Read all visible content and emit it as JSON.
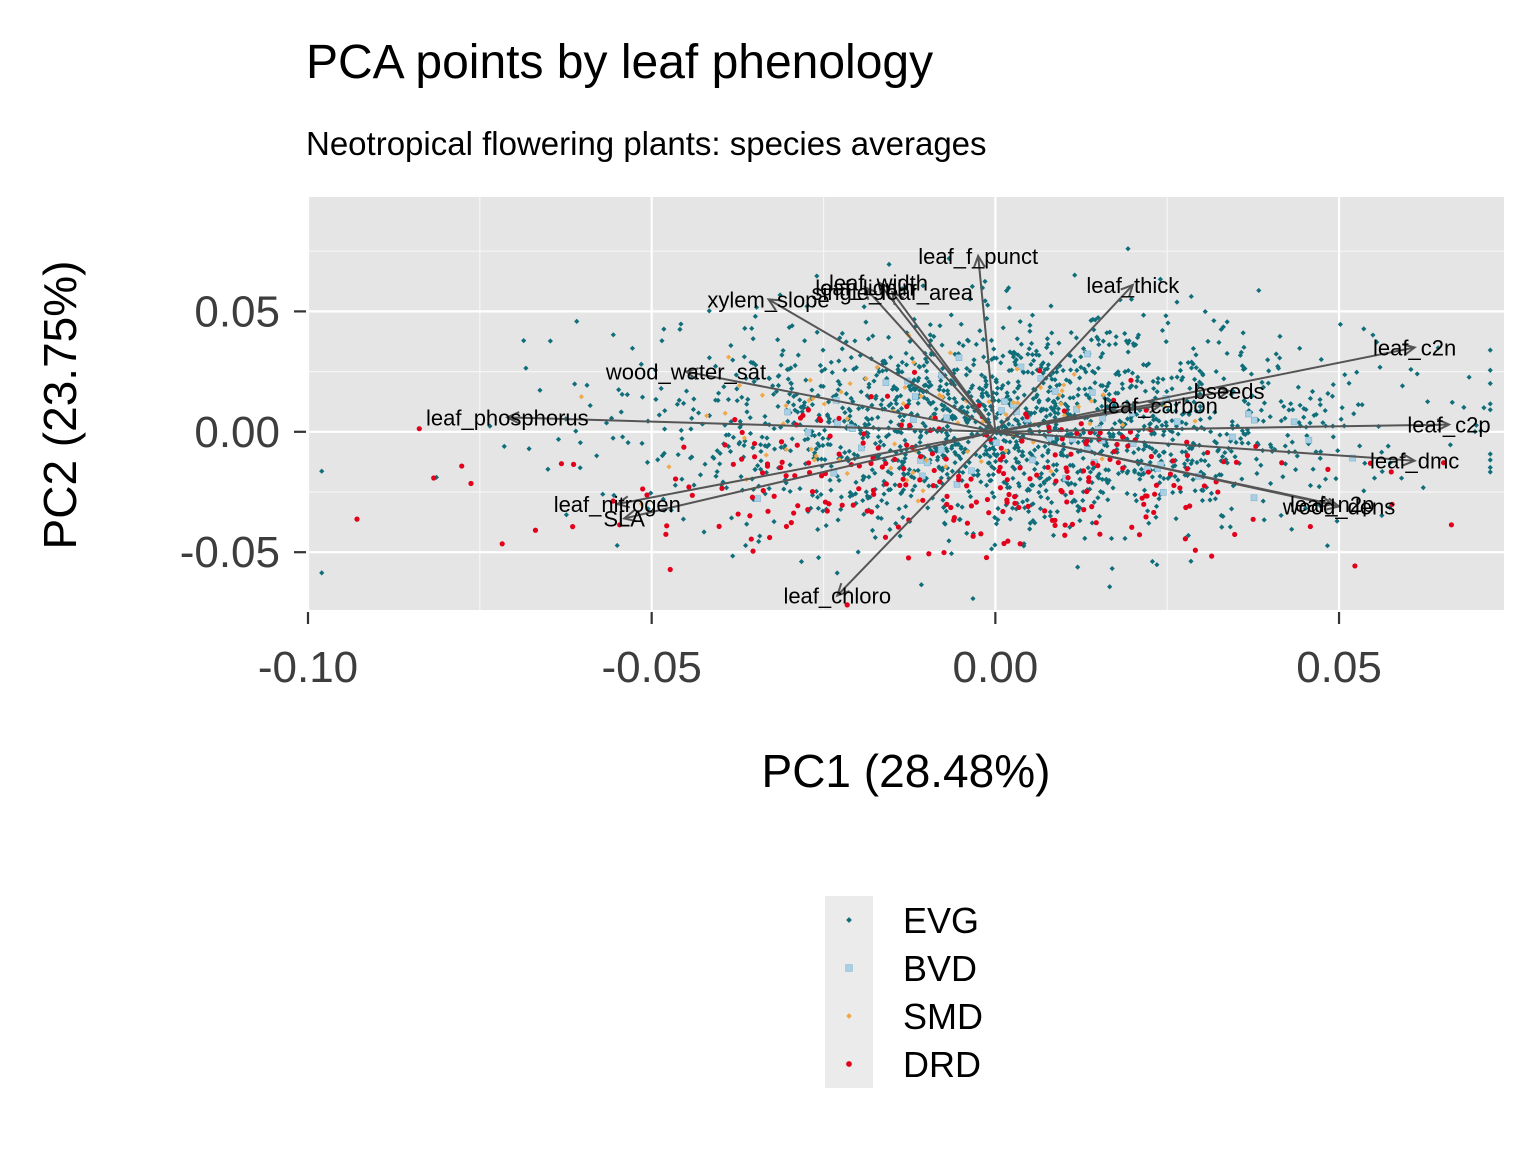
{
  "chart_data": {
    "type": "scatter",
    "title": "PCA points by leaf phenology",
    "subtitle": "Neotropical flowering plants: species averages",
    "xlabel": "PC1 (28.48%)",
    "ylabel": "PC2 (23.75%)",
    "xlim": [
      -0.1,
      0.074
    ],
    "ylim": [
      -0.074,
      0.0975
    ],
    "x_ticks": [
      "-0.10",
      "-0.05",
      "0.00",
      "0.05"
    ],
    "y_ticks": [
      "0.05",
      "0.00",
      "-0.05"
    ],
    "grid": true,
    "legend_position": "bottom",
    "series": [
      {
        "name": "EVG",
        "color": "#0f6e7a",
        "marker": "diamond",
        "count": 1800,
        "center": [
          0.002,
          0.003
        ],
        "spread": [
          0.026,
          0.022
        ]
      },
      {
        "name": "BVD",
        "color": "#a9cfe4",
        "marker": "square",
        "count": 60,
        "center": [
          0.005,
          -0.002
        ],
        "spread": [
          0.02,
          0.016
        ]
      },
      {
        "name": "SMD",
        "color": "#f0a84a",
        "marker": "diamond",
        "count": 80,
        "center": [
          -0.01,
          0.002
        ],
        "spread": [
          0.022,
          0.018
        ]
      },
      {
        "name": "DRD",
        "color": "#e3001b",
        "marker": "circle",
        "count": 260,
        "center": [
          -0.008,
          -0.02
        ],
        "spread": [
          0.028,
          0.016
        ]
      }
    ],
    "loadings": [
      {
        "label": "leaf_f_punct",
        "x": -0.0025,
        "y": 0.073
      },
      {
        "label": "leaf_thick",
        "x": 0.02,
        "y": 0.061
      },
      {
        "label": "leaf_width",
        "x": -0.017,
        "y": 0.062
      },
      {
        "label": "leaf_lignin",
        "x": -0.019,
        "y": 0.06
      },
      {
        "label": "single_leaf_area",
        "x": -0.015,
        "y": 0.058
      },
      {
        "label": "xylem_slope",
        "x": -0.033,
        "y": 0.055
      },
      {
        "label": "wood_water_sat",
        "x": -0.045,
        "y": 0.025
      },
      {
        "label": "leaf_phosphorus",
        "x": -0.071,
        "y": 0.006
      },
      {
        "label": "leaf_nitrogen",
        "x": -0.055,
        "y": -0.03
      },
      {
        "label": "SLA",
        "x": -0.054,
        "y": -0.036
      },
      {
        "label": "leaf_chloro",
        "x": -0.023,
        "y": -0.068
      },
      {
        "label": "leaf_c2n",
        "x": 0.061,
        "y": 0.035
      },
      {
        "label": "bseeds",
        "x": 0.034,
        "y": 0.017
      },
      {
        "label": "leaf_carbon",
        "x": 0.024,
        "y": 0.011
      },
      {
        "label": "leaf_c2p",
        "x": 0.066,
        "y": 0.003
      },
      {
        "label": "leaf_dmc",
        "x": 0.061,
        "y": -0.012
      },
      {
        "label": "leaf_n2p",
        "x": 0.049,
        "y": -0.03
      },
      {
        "label": "wood_dens",
        "x": 0.05,
        "y": -0.031
      }
    ]
  }
}
